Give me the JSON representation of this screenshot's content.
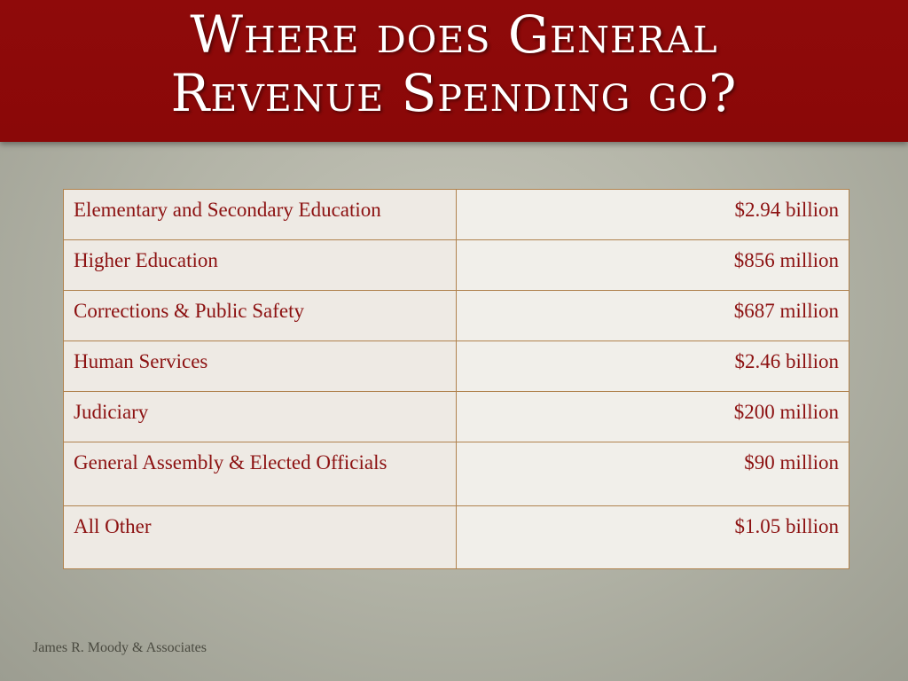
{
  "title": {
    "line1": "Where does General",
    "line2": "Revenue Spending go?"
  },
  "table": {
    "rows": [
      {
        "category": "Elementary and Secondary Education",
        "amount": "$2.94 billion"
      },
      {
        "category": "Higher Education",
        "amount": "$856 million"
      },
      {
        "category": "Corrections & Public Safety",
        "amount": "$687 million"
      },
      {
        "category": "Human Services",
        "amount": "$2.46 billion"
      },
      {
        "category": "Judiciary",
        "amount": "$200 million"
      },
      {
        "category": "General Assembly & Elected Officials",
        "amount": "$90 million"
      },
      {
        "category": "All Other",
        "amount": "$1.05 billion"
      }
    ]
  },
  "footer": {
    "text": "James R. Moody & Associates"
  },
  "colors": {
    "title_band": "#8f0a0a",
    "title_text": "#ffffff",
    "table_text": "#8c1111",
    "table_border": "#b0824e",
    "background": "#b4b5a8"
  }
}
